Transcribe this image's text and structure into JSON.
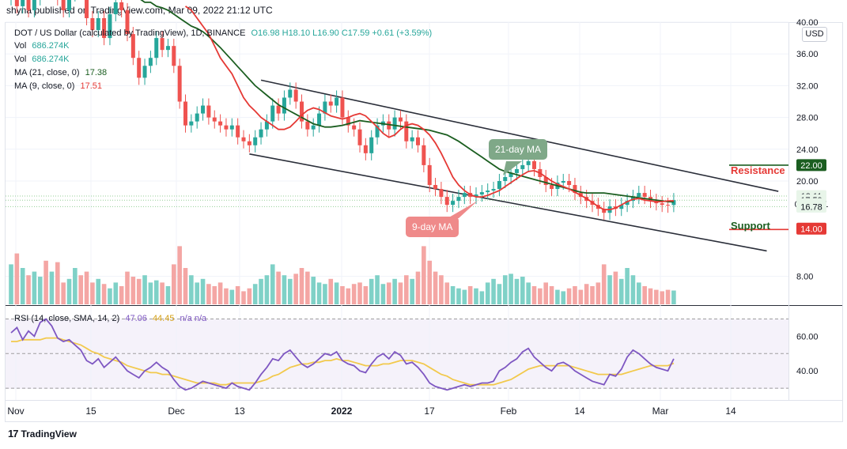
{
  "header": {
    "text": "shyna published on TradingView.com, Mar 09, 2022 21:12 UTC"
  },
  "footer": {
    "brand": "TradingView",
    "logo": "17"
  },
  "legend": {
    "symbol": "DOT / US Dollar (calculated by TradingView), 1D, BINANCE",
    "ohlc": "O16.98  H18.10  L16.90  C17.59  +0.61 (+3.59%)",
    "vol1_label": "Vol",
    "vol1_value": "686.274K",
    "vol2_label": "Vol",
    "vol2_value": "686.274K",
    "ma21_label": "MA (21, close, 0)",
    "ma21_value": "17.38",
    "ma9_label": "MA (9, close, 0)",
    "ma9_value": "17.51",
    "rsi_label": "RSI (14, close, SMA, 14, 2)",
    "rsi_value": "47.06",
    "rsi_ma_value": "44.45",
    "rsi_na": "n/a  n/a"
  },
  "currency_button": "USD",
  "annotations": {
    "resistance": "Resistance",
    "support": "Support",
    "ma21_bubble": "21-day MA",
    "ma9_bubble": "9-day MA"
  },
  "colors": {
    "up": "#26a69a",
    "down": "#ef5350",
    "ma21": "#1b5e20",
    "ma9": "#e53935",
    "rsi": "#7e57c2",
    "rsi_ma": "#f2c94c"
  },
  "chart_data": {
    "type": "candlestick",
    "price_axis": {
      "ticks": [
        "40.00",
        "36.00",
        "32.00",
        "28.00",
        "24.00",
        "20.00",
        "8.00"
      ],
      "ylim": [
        4,
        42
      ]
    },
    "time_axis": {
      "ticks": [
        "Nov",
        "15",
        "Dec",
        "13",
        "2022",
        "17",
        "Feb",
        "14",
        "Mar",
        "14"
      ]
    },
    "price_tags": [
      {
        "label": "22.00",
        "value": 22.0,
        "style": "green"
      },
      {
        "label": "18.11",
        "value": 18.11,
        "style": "light"
      },
      {
        "label": "17.59",
        "value": 17.59,
        "style": "light"
      },
      {
        "label": "02:47:01",
        "value": 17.1,
        "style": "light"
      },
      {
        "label": "16.78",
        "value": 16.78,
        "style": "light"
      },
      {
        "label": "14.00",
        "value": 14.0,
        "style": "red"
      }
    ],
    "resistance_level": 22.0,
    "support_level": 14.0,
    "channel": {
      "upper": [
        {
          "day": 43,
          "price": 32.7
        },
        {
          "day": 132,
          "price": 18.7
        }
      ],
      "lower": [
        {
          "day": 41,
          "price": 23.4
        },
        {
          "day": 130,
          "price": 11.2
        }
      ]
    },
    "close": [
      44.5,
      42.0,
      44.0,
      41.5,
      43.0,
      44.5,
      44.0,
      45.0,
      43.0,
      41.5,
      43.5,
      46.0,
      44.0,
      40.5,
      39.0,
      40.5,
      38.0,
      41.0,
      42.5,
      41.5,
      38.5,
      35.5,
      33.0,
      34.5,
      35.5,
      38.0,
      36.5,
      37.0,
      34.5,
      30.0,
      27.0,
      27.5,
      28.5,
      29.5,
      28.0,
      27.5,
      27.0,
      26.5,
      27.0,
      25.5,
      25.0,
      24.5,
      25.5,
      26.5,
      27.5,
      29.5,
      28.5,
      30.5,
      31.5,
      30.0,
      27.5,
      26.5,
      27.0,
      28.5,
      30.0,
      29.5,
      30.5,
      28.0,
      27.0,
      26.5,
      24.5,
      23.5,
      25.5,
      27.0,
      27.5,
      26.5,
      28.0,
      27.5,
      25.0,
      25.5,
      24.5,
      22.0,
      19.5,
      19.0,
      18.0,
      17.0,
      17.5,
      18.0,
      18.5,
      18.0,
      18.3,
      18.6,
      18.8,
      19.0,
      20.0,
      20.5,
      21.0,
      21.5,
      22.0,
      22.5,
      21.5,
      20.5,
      19.5,
      19.0,
      19.8,
      20.0,
      19.5,
      18.5,
      18.0,
      17.5,
      17.0,
      16.5,
      16.0,
      16.8,
      16.5,
      17.0,
      17.5,
      18.0,
      18.5,
      18.0,
      17.5,
      17.2,
      17.0,
      16.9,
      17.59
    ],
    "open_offset": [
      1.5,
      -2.5,
      2.0,
      -2.5,
      1.5,
      1.5,
      -0.5,
      1.0,
      -2.0,
      -1.5,
      2.0,
      2.5,
      -2.0,
      -3.5,
      -1.5,
      1.5,
      -2.5,
      3.0,
      1.5,
      -1.0,
      -3.0,
      -3.0,
      -2.5,
      1.5,
      1.0,
      2.5,
      -1.5,
      0.5,
      -2.5,
      -4.5,
      -3.0,
      0.5,
      1.0,
      1.0,
      -1.5,
      -0.5,
      -0.5,
      -0.5,
      0.5,
      -1.5,
      -0.5,
      -0.5,
      1.0,
      1.0,
      1.0,
      2.0,
      -1.0,
      2.0,
      1.0,
      -1.5,
      -2.5,
      -1.0,
      0.5,
      1.5,
      1.5,
      -0.5,
      1.0,
      -2.5,
      -1.0,
      -0.5,
      -2.0,
      -1.0,
      2.0,
      1.5,
      0.5,
      -1.0,
      1.5,
      -0.5,
      -2.5,
      0.5,
      -1.0,
      -2.5,
      -2.5,
      -0.5,
      -1.0,
      -1.0,
      0.5,
      0.5,
      0.5,
      -0.5,
      0.3,
      0.3,
      0.2,
      0.2,
      1.0,
      0.5,
      0.5,
      0.5,
      0.5,
      0.5,
      -1.0,
      -1.0,
      -1.0,
      -0.5,
      0.8,
      0.2,
      -0.5,
      -1.0,
      -0.5,
      -0.5,
      -0.5,
      -0.5,
      -0.5,
      0.8,
      -0.3,
      0.5,
      0.5,
      0.5,
      0.5,
      -0.5,
      -0.5,
      -0.3,
      -0.2,
      -0.1,
      0.61
    ],
    "ma21": [
      43.0,
      43.0,
      42.5,
      42.5,
      42.0,
      41.8,
      41.5,
      41.0,
      40.5,
      40.0,
      39.5,
      39.2,
      38.8,
      38.2,
      37.5,
      36.8,
      36.0,
      35.2,
      34.4,
      33.6,
      32.8,
      32.0,
      31.4,
      30.8,
      30.2,
      29.6,
      29.2,
      28.8,
      28.4,
      28.0,
      27.6,
      27.2,
      27.0,
      26.8,
      26.8,
      26.9,
      27.0,
      27.2,
      27.4,
      27.6,
      27.5,
      27.4,
      27.3,
      27.2,
      27.1,
      27.0,
      26.9,
      26.8,
      26.7,
      26.6,
      26.5,
      26.4,
      26.2,
      26.0,
      25.8,
      25.4,
      25.0,
      24.5,
      24.0,
      23.5,
      23.0,
      22.5,
      22.0,
      21.5,
      21.2,
      21.0,
      20.8,
      20.6,
      20.4,
      20.2,
      20.0,
      19.8,
      19.6,
      19.4,
      19.2,
      19.0,
      18.8,
      18.6,
      18.5,
      18.5,
      18.5,
      18.5,
      18.4,
      18.3,
      18.2,
      18.1,
      18.0,
      17.9,
      17.8,
      17.7,
      17.6,
      17.5,
      17.4,
      17.38
    ],
    "ma9": [
      42.0,
      41.5,
      40.5,
      39.5,
      38.5,
      37.0,
      35.5,
      34.5,
      33.5,
      32.0,
      30.5,
      29.5,
      28.8,
      28.0,
      27.5,
      27.0,
      26.5,
      26.5,
      26.8,
      27.5,
      28.3,
      28.9,
      29.2,
      29.0,
      28.6,
      28.2,
      28.0,
      27.8,
      28.0,
      28.3,
      28.5,
      28.2,
      27.5,
      26.8,
      26.0,
      25.5,
      25.8,
      26.5,
      27.0,
      27.2,
      27.0,
      26.5,
      25.8,
      24.8,
      23.5,
      22.0,
      20.5,
      19.5,
      18.8,
      18.3,
      18.0,
      18.0,
      18.2,
      18.5,
      18.8,
      19.3,
      19.8,
      20.3,
      20.8,
      21.2,
      21.3,
      21.0,
      20.5,
      20.0,
      19.6,
      19.3,
      19.0,
      18.6,
      18.2,
      17.8,
      17.3,
      16.8,
      16.4,
      16.4,
      16.6,
      17.0,
      17.4,
      17.7,
      17.8,
      17.6,
      17.5,
      17.4,
      17.4,
      17.5,
      17.51
    ],
    "volume": [
      0.55,
      0.7,
      0.5,
      0.4,
      0.45,
      0.38,
      0.6,
      0.45,
      0.58,
      0.3,
      0.35,
      0.5,
      0.4,
      0.45,
      0.3,
      0.35,
      0.28,
      0.22,
      0.3,
      0.25,
      0.45,
      0.38,
      0.35,
      0.4,
      0.3,
      0.33,
      0.3,
      0.25,
      0.55,
      0.8,
      0.5,
      0.4,
      0.3,
      0.35,
      0.28,
      0.25,
      0.3,
      0.22,
      0.2,
      0.25,
      0.18,
      0.22,
      0.28,
      0.35,
      0.4,
      0.55,
      0.45,
      0.4,
      0.35,
      0.42,
      0.5,
      0.45,
      0.38,
      0.3,
      0.28,
      0.35,
      0.3,
      0.25,
      0.22,
      0.28,
      0.3,
      0.25,
      0.35,
      0.4,
      0.28,
      0.3,
      0.35,
      0.3,
      0.4,
      0.35,
      0.45,
      0.8,
      0.6,
      0.45,
      0.4,
      0.3,
      0.25,
      0.22,
      0.2,
      0.25,
      0.22,
      0.18,
      0.3,
      0.35,
      0.28,
      0.4,
      0.42,
      0.35,
      0.38,
      0.3,
      0.25,
      0.22,
      0.3,
      0.25,
      0.2,
      0.18,
      0.22,
      0.25,
      0.2,
      0.28,
      0.25,
      0.3,
      0.55,
      0.4,
      0.45,
      0.35,
      0.5,
      0.4,
      0.3,
      0.25,
      0.22,
      0.2,
      0.18,
      0.2,
      0.19
    ],
    "rsi_axis": {
      "ticks": [
        "60.00",
        "40.00"
      ],
      "ylim": [
        25,
        75
      ]
    },
    "rsi": [
      62,
      65,
      58,
      63,
      60,
      68,
      70,
      66,
      59,
      57,
      58,
      55,
      52,
      46,
      44,
      47,
      42,
      45,
      48,
      44,
      40,
      38,
      36,
      40,
      42,
      45,
      42,
      40,
      35,
      31,
      29,
      30,
      32,
      34,
      33,
      32,
      31,
      30,
      33,
      31,
      30,
      29,
      33,
      38,
      42,
      47,
      46,
      50,
      52,
      48,
      44,
      42,
      44,
      47,
      50,
      49,
      51,
      46,
      44,
      43,
      40,
      39,
      44,
      48,
      50,
      47,
      51,
      49,
      44,
      45,
      42,
      38,
      33,
      31,
      30,
      29,
      30,
      31,
      32,
      31,
      32,
      33,
      33,
      34,
      40,
      42,
      45,
      47,
      51,
      53,
      48,
      45,
      42,
      40,
      44,
      45,
      43,
      40,
      38,
      36,
      34,
      33,
      32,
      38,
      37,
      41,
      48,
      52,
      50,
      47,
      44,
      42,
      41,
      40,
      47
    ],
    "rsi_ma": [
      57,
      57,
      58,
      58,
      58,
      58,
      59,
      59,
      59,
      58,
      57,
      56,
      55,
      53,
      51,
      50,
      48,
      47,
      46,
      45,
      43,
      42,
      41,
      40,
      39,
      39,
      38,
      38,
      37,
      36,
      35,
      34,
      33,
      33,
      33,
      33,
      32,
      32,
      33,
      33,
      33,
      33,
      33,
      34,
      35,
      37,
      38,
      40,
      42,
      43,
      44,
      44,
      45,
      45,
      46,
      46,
      47,
      46,
      46,
      45,
      44,
      43,
      43,
      43,
      44,
      44,
      45,
      46,
      46,
      46,
      45,
      44,
      42,
      40,
      38,
      37,
      35,
      34,
      33,
      32,
      32,
      32,
      32,
      32,
      33,
      34,
      35,
      37,
      39,
      41,
      42,
      43,
      43,
      43,
      43,
      43,
      43,
      42,
      41,
      40,
      39,
      38,
      38,
      38,
      38,
      38,
      39,
      40,
      41,
      42,
      43,
      43,
      43,
      43,
      44.45
    ]
  }
}
